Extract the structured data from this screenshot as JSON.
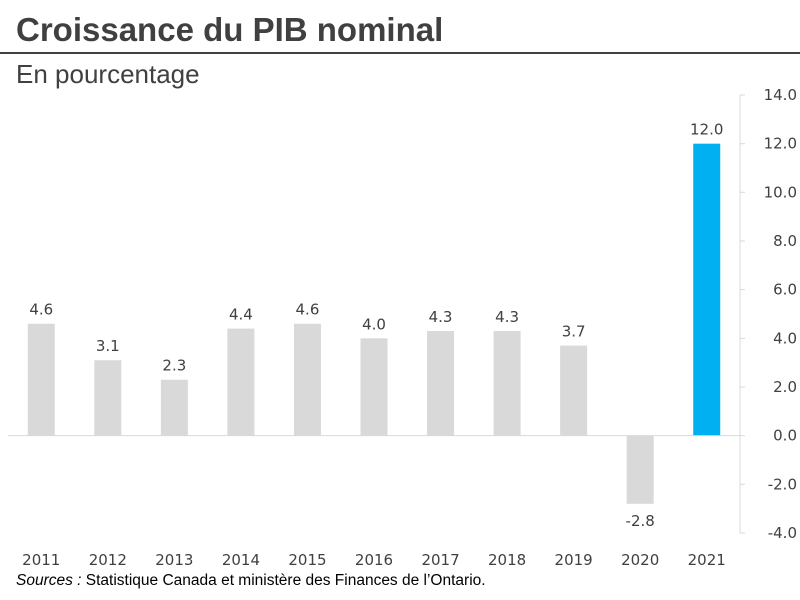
{
  "header": {
    "title": "Croissance du PIB nominal",
    "subtitle": "En pourcentage"
  },
  "footer": {
    "source_prefix": "Sources :",
    "source_text": " Statistique Canada et ministère des Finances de l’Ontario."
  },
  "colors": {
    "default_bar": "#d9d9d9",
    "highlight_bar": "#00b0f0",
    "axis": "#d9d9d9",
    "text": "#404040"
  },
  "chart_data": {
    "type": "bar",
    "title": "Croissance du PIB nominal",
    "subtitle": "En pourcentage",
    "categories": [
      "2011",
      "2012",
      "2013",
      "2014",
      "2015",
      "2016",
      "2017",
      "2018",
      "2019",
      "2020",
      "2021"
    ],
    "values": [
      4.6,
      3.1,
      2.3,
      4.4,
      4.6,
      4.0,
      4.3,
      4.3,
      3.7,
      -2.8,
      12.0
    ],
    "data_labels": [
      "4.6",
      "3.1",
      "2.3",
      "4.4",
      "4.6",
      "4.0",
      "4.3",
      "4.3",
      "3.7",
      "-2.8",
      "12.0"
    ],
    "highlight_category": "2021",
    "ylim": [
      -4.0,
      14.0
    ],
    "y_ticks": [
      -4.0,
      -2.0,
      0.0,
      2.0,
      4.0,
      6.0,
      8.0,
      10.0,
      12.0,
      14.0
    ],
    "y_tick_labels": [
      "-4.0",
      "-2.0",
      "0.0",
      "2.0",
      "4.0",
      "6.0",
      "8.0",
      "10.0",
      "12.0",
      "14.0"
    ],
    "y_axis_position": "right",
    "grid": false,
    "legend": "none"
  }
}
